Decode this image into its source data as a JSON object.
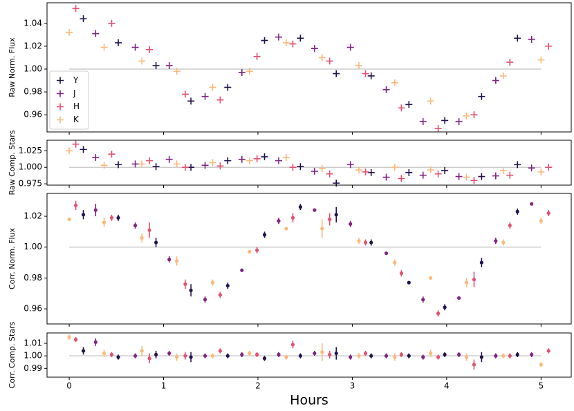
{
  "chart_data": [
    {
      "type": "scatter",
      "y_label": "Raw Norm. Flux",
      "marker": "plus",
      "xlim": [
        -0.235,
        5.32
      ],
      "ylim": [
        0.945,
        1.058
      ],
      "yticks": [
        0.96,
        0.98,
        {
          "value": 1.0,
          "label": "1.00"
        },
        1.02,
        1.04
      ],
      "reference_line": {
        "y": 1.0,
        "x": [
          0,
          5
        ]
      },
      "legend": "lower left",
      "series": [
        {
          "name": "Y",
          "color": "#221150",
          "x": [
            0.15,
            0.52,
            0.92,
            1.29,
            1.68,
            2.07,
            2.45,
            2.83,
            3.2,
            3.6,
            3.98,
            4.37,
            4.75
          ],
          "values": [
            1.044,
            1.023,
            1.003,
            0.972,
            0.984,
            1.025,
            1.027,
            0.996,
            0.994,
            0.969,
            0.955,
            0.976,
            1.027
          ]
        },
        {
          "name": "J",
          "color": "#7e2482",
          "x": [
            0.28,
            0.7,
            1.06,
            1.44,
            1.83,
            2.22,
            2.6,
            2.98,
            3.36,
            3.75,
            4.13,
            4.52,
            4.9
          ],
          "values": [
            1.031,
            1.019,
            1.003,
            0.976,
            0.997,
            1.028,
            1.018,
            1.019,
            0.982,
            0.954,
            0.954,
            0.99,
            1.026
          ]
        },
        {
          "name": "H",
          "color": "#e34f6f",
          "x": [
            0.07,
            0.45,
            0.85,
            1.23,
            1.6,
            1.99,
            2.37,
            2.76,
            3.14,
            3.52,
            3.91,
            4.29,
            4.67,
            5.08
          ],
          "values": [
            1.053,
            1.04,
            1.017,
            0.978,
            0.973,
            1.011,
            1.022,
            1.007,
            0.996,
            0.966,
            0.948,
            0.96,
            1.006,
            1.02
          ]
        },
        {
          "name": "K",
          "color": "#fbb978",
          "x": [
            0,
            0.37,
            0.77,
            1.14,
            1.52,
            1.91,
            2.3,
            2.68,
            3.07,
            3.45,
            3.83,
            4.21,
            4.6,
            5.0
          ],
          "values": [
            1.032,
            1.019,
            1.007,
            0.998,
            0.984,
            0.998,
            1.023,
            1.01,
            1.003,
            0.988,
            0.972,
            0.959,
            0.994,
            1.008
          ]
        }
      ]
    },
    {
      "type": "scatter",
      "y_label": "Raw Comp. Stars",
      "marker": "plus",
      "xlim": [
        -0.235,
        5.32
      ],
      "ylim": [
        0.973,
        1.041
      ],
      "yticks": [
        0.975,
        {
          "value": 1.0,
          "label": "1.000"
        },
        1.025
      ],
      "reference_line": {
        "y": 1.0,
        "x": [
          0,
          5
        ]
      },
      "series": [
        {
          "color": "#221150",
          "x": [
            0.15,
            0.52,
            0.92,
            1.29,
            1.68,
            2.07,
            2.45,
            2.83,
            3.2,
            3.6,
            3.98,
            4.37,
            4.75
          ],
          "values": [
            1.027,
            1.004,
            1.001,
            1.0,
            1.01,
            1.016,
            1.001,
            0.976,
            0.992,
            0.992,
            0.995,
            0.986,
            1.004
          ]
        },
        {
          "color": "#7e2482",
          "x": [
            0.28,
            0.7,
            1.06,
            1.44,
            1.83,
            2.22,
            2.6,
            2.98,
            3.36,
            3.75,
            4.13,
            4.52,
            4.9
          ],
          "values": [
            1.015,
            1.005,
            1.012,
            1.003,
            1.012,
            1.01,
            0.994,
            1.004,
            0.985,
            0.988,
            0.986,
            0.987,
            0.999
          ]
        },
        {
          "color": "#e34f6f",
          "x": [
            0.07,
            0.45,
            0.85,
            1.23,
            1.6,
            1.99,
            2.37,
            2.76,
            3.14,
            3.52,
            3.91,
            4.29,
            4.67,
            5.08
          ],
          "values": [
            1.035,
            1.02,
            1.01,
            1.0,
            1.002,
            1.013,
            1.0,
            0.99,
            0.993,
            0.983,
            0.99,
            0.98,
            0.988,
            1.0
          ]
        },
        {
          "color": "#fbb978",
          "x": [
            0,
            0.37,
            0.77,
            1.14,
            1.52,
            1.91,
            2.3,
            2.68,
            3.07,
            3.45,
            3.83,
            4.21,
            4.6,
            5.0
          ],
          "values": [
            1.025,
            1.003,
            1.005,
            1.005,
            1.007,
            1.01,
            1.015,
            0.998,
            0.996,
            1.0,
            0.996,
            0.985,
            0.995,
            0.993
          ]
        }
      ]
    },
    {
      "type": "errorbar",
      "y_label": "Corr. Norm. Flux",
      "marker": "dot",
      "xlim": [
        -0.235,
        5.32
      ],
      "ylim": [
        0.9502,
        1.0348
      ],
      "yticks": [
        0.96,
        0.98,
        {
          "value": 1.0,
          "label": "1.00"
        },
        1.02
      ],
      "reference_line": {
        "y": 1.0,
        "x": [
          0,
          5
        ]
      },
      "series": [
        {
          "color": "#221150",
          "x": [
            0.15,
            0.52,
            0.92,
            1.29,
            1.68,
            2.07,
            2.45,
            2.83,
            3.2,
            3.6,
            3.98,
            4.37,
            4.75
          ],
          "values": [
            1.021,
            1.019,
            1.003,
            0.972,
            0.975,
            1.008,
            1.026,
            1.021,
            1.003,
            0.977,
            0.961,
            0.99,
            1.023
          ],
          "errors": [
            0.003,
            0.002,
            0.003,
            0.004,
            0.002,
            0.002,
            0.002,
            0.005,
            0.002,
            0.001,
            0.002,
            0.003,
            0.002
          ]
        },
        {
          "color": "#7e2482",
          "x": [
            0.28,
            0.7,
            1.06,
            1.44,
            1.83,
            2.22,
            2.6,
            2.98,
            3.36,
            3.75,
            4.13,
            4.52,
            4.9
          ],
          "values": [
            1.024,
            1.014,
            0.992,
            0.966,
            0.985,
            1.017,
            1.024,
            1.015,
            0.996,
            0.966,
            0.967,
            1.004,
            1.028
          ],
          "errors": [
            0.004,
            0.002,
            0.002,
            0.002,
            0.001,
            0.002,
            0.001,
            0.002,
            0.001,
            0.002,
            0.001,
            0.002,
            0.001
          ]
        },
        {
          "color": "#e34f6f",
          "x": [
            0.07,
            0.45,
            0.85,
            1.23,
            1.6,
            1.99,
            2.37,
            2.76,
            3.14,
            3.52,
            3.91,
            4.29,
            4.67,
            5.08
          ],
          "values": [
            1.027,
            1.019,
            1.011,
            0.976,
            0.969,
            0.998,
            1.019,
            1.018,
            1.003,
            0.983,
            0.957,
            0.979,
            1.014,
            1.022
          ],
          "errors": [
            0.003,
            0.002,
            0.005,
            0.003,
            0.002,
            0.002,
            0.003,
            0.004,
            0.002,
            0.002,
            0.002,
            0.005,
            0.002,
            0.002
          ]
        },
        {
          "color": "#fbb978",
          "x": [
            0,
            0.37,
            0.77,
            1.14,
            1.52,
            1.91,
            2.3,
            2.68,
            3.07,
            3.45,
            3.83,
            4.21,
            4.6,
            5.0
          ],
          "values": [
            1.018,
            1.016,
            1.006,
            0.991,
            0.977,
            0.997,
            1.012,
            1.012,
            1.004,
            0.99,
            0.98,
            0.977,
            1.003,
            1.017
          ],
          "errors": [
            0.001,
            0.003,
            0.003,
            0.003,
            0.002,
            0.001,
            0.001,
            0.006,
            0.002,
            0.002,
            0.001,
            0.003,
            0.002,
            0.002
          ]
        }
      ]
    },
    {
      "type": "errorbar",
      "y_label": "Corr. Comp. Stars",
      "x_label": "Hours",
      "marker": "dot",
      "xlim": [
        -0.235,
        5.32
      ],
      "ylim": [
        0.983,
        1.0183
      ],
      "xticks": [
        0,
        1,
        2,
        3,
        4,
        5
      ],
      "yticks": [
        0.99,
        {
          "value": 1.0,
          "label": "1.00"
        },
        1.01
      ],
      "reference_line": {
        "y": 1.0,
        "x": [
          0,
          5
        ]
      },
      "series": [
        {
          "color": "#221150",
          "x": [
            0.15,
            0.52,
            0.92,
            1.29,
            1.68,
            2.07,
            2.45,
            2.83,
            3.2,
            3.6,
            3.98,
            4.37,
            4.75
          ],
          "values": [
            1.004,
            0.999,
            1.001,
            0.999,
            1.0,
            0.998,
            1.0,
            1.002,
            1.0,
            1.0,
            1.001,
            0.999,
            1.001
          ],
          "errors": [
            0.003,
            0.002,
            0.003,
            0.004,
            0.002,
            0.002,
            0.002,
            0.005,
            0.002,
            0.002,
            0.002,
            0.004,
            0.002
          ]
        },
        {
          "color": "#7e2482",
          "x": [
            0.28,
            0.7,
            1.06,
            1.44,
            1.83,
            2.22,
            2.6,
            2.98,
            3.36,
            3.75,
            4.13,
            4.52,
            4.9
          ],
          "values": [
            1.011,
            1.0,
            1.002,
            1.0,
            1.001,
            1.001,
            1.002,
            0.999,
            1.0,
            0.999,
            1.001,
            1.0,
            1.001
          ],
          "errors": [
            0.003,
            0.002,
            0.002,
            0.002,
            0.002,
            0.002,
            0.002,
            0.002,
            0.002,
            0.002,
            0.002,
            0.002,
            0.002
          ]
        },
        {
          "color": "#e34f6f",
          "x": [
            0.07,
            0.45,
            0.85,
            1.23,
            1.6,
            1.99,
            2.37,
            2.76,
            3.14,
            3.52,
            3.91,
            4.29,
            4.67,
            5.08
          ],
          "values": [
            1.013,
            1.001,
            0.998,
            1.0,
            1.004,
            1.001,
            1.009,
            1.001,
            1.002,
            1.001,
            0.999,
            0.993,
            1.0,
            1.004
          ],
          "errors": [
            0.002,
            0.002,
            0.004,
            0.003,
            0.002,
            0.002,
            0.003,
            0.003,
            0.002,
            0.002,
            0.002,
            0.004,
            0.002,
            0.002
          ]
        },
        {
          "color": "#fbb978",
          "x": [
            0,
            0.37,
            0.77,
            1.14,
            1.52,
            1.91,
            2.3,
            2.68,
            3.07,
            3.45,
            3.83,
            4.21,
            4.6,
            5.0
          ],
          "values": [
            1.015,
            1.002,
            1.004,
            0.999,
            1.0,
            1.002,
            0.999,
            1.003,
            1.0,
            0.999,
            1.002,
            0.999,
            1.0,
            0.993
          ],
          "errors": [
            0.002,
            0.003,
            0.004,
            0.003,
            0.002,
            0.002,
            0.002,
            0.007,
            0.002,
            0.003,
            0.003,
            0.003,
            0.002,
            0.002
          ]
        }
      ]
    }
  ]
}
